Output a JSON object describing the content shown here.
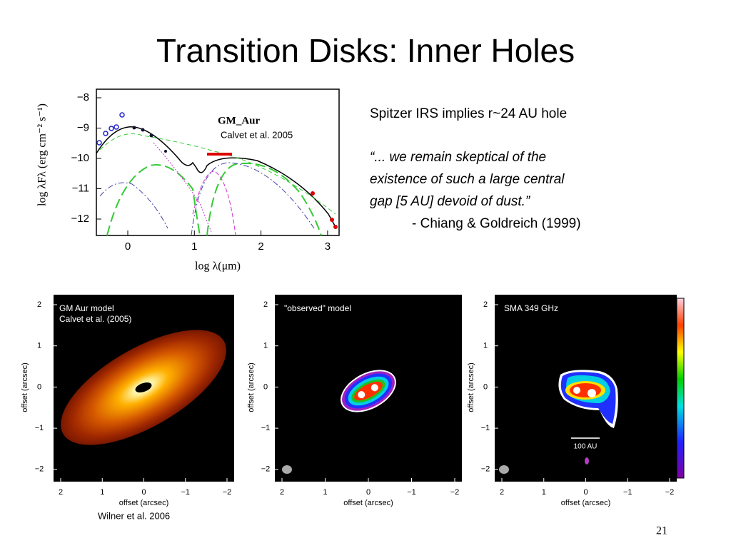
{
  "title": "Transition Disks: Inner Holes",
  "sed": {
    "label": "GM_Aur",
    "credit": "Calvet et al. 2005",
    "ylabel": "log λFλ (erg cm⁻² s⁻¹)",
    "xlabel": "log λ(μm)",
    "yticks": [
      "−8",
      "−9",
      "−10",
      "−11",
      "−12"
    ],
    "xticks": [
      "0",
      "1",
      "2",
      "3"
    ]
  },
  "text": {
    "line1": "Spitzer IRS implies r~24 AU hole",
    "quote": [
      "“... we remain skeptical of the",
      "existence of such a large central",
      "gap [5 AU] devoid of dust.”"
    ],
    "attribution": "- Chiang & Goldreich (1999)"
  },
  "panel_axes": {
    "ticks": [
      "2",
      "1",
      "0",
      "−1",
      "−2"
    ],
    "xlabel": "offset (arcsec)",
    "ylabel": "offset (arcsec)"
  },
  "panels": [
    {
      "label": [
        "GM Aur model",
        "Calvet et al. (2005)"
      ]
    },
    {
      "label": [
        "\"observed\" model"
      ]
    },
    {
      "label": [
        "SMA 349 GHz"
      ]
    }
  ],
  "scale_bar": "100 AU",
  "credit": "Wilner et al. 2006",
  "page_number": "21"
}
